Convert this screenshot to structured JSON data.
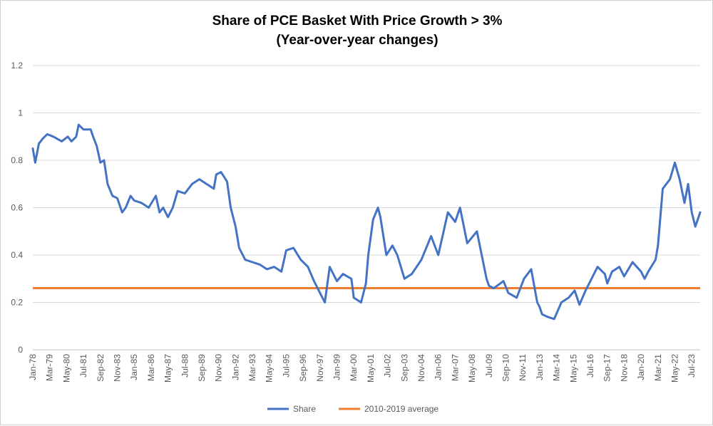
{
  "chart_data": {
    "type": "line",
    "title": "Share of PCE Basket With Price Growth > 3%",
    "subtitle": "(Year-over-year changes)",
    "xlabel": "",
    "ylabel": "",
    "ylim": [
      0,
      1.2
    ],
    "yticks": [
      "0",
      "0.2",
      "0.4",
      "0.6",
      "0.8",
      "1",
      "1.2"
    ],
    "ytick_values": [
      0,
      0.2,
      0.4,
      0.6,
      0.8,
      1.0,
      1.2
    ],
    "grid": true,
    "legend_position": "bottom",
    "x_range": [
      "Jan-78",
      "Feb-24"
    ],
    "xticks": [
      "Jan-78",
      "Mar-79",
      "May-80",
      "Jul-81",
      "Sep-82",
      "Nov-83",
      "Jan-85",
      "Mar-86",
      "May-87",
      "Jul-88",
      "Sep-89",
      "Nov-90",
      "Jan-92",
      "Mar-93",
      "May-94",
      "Jul-95",
      "Sep-96",
      "Nov-97",
      "Jan-99",
      "Mar-00",
      "May-01",
      "Jul-02",
      "Sep-03",
      "Nov-04",
      "Jan-06",
      "Mar-07",
      "May-08",
      "Jul-09",
      "Sep-10",
      "Nov-11",
      "Jan-13",
      "Mar-14",
      "May-15",
      "Jul-16",
      "Sep-17",
      "Nov-18",
      "Jan-20",
      "Mar-21",
      "May-22",
      "Jul-23"
    ],
    "series": [
      {
        "name": "Share",
        "color": "#4472C4",
        "points": [
          [
            "Jan-78",
            0.85
          ],
          [
            "Mar-78",
            0.79
          ],
          [
            "Jun-78",
            0.87
          ],
          [
            "Sep-78",
            0.89
          ],
          [
            "Jan-79",
            0.91
          ],
          [
            "Jun-79",
            0.9
          ],
          [
            "Jan-80",
            0.88
          ],
          [
            "Jun-80",
            0.9
          ],
          [
            "Sep-80",
            0.88
          ],
          [
            "Jan-81",
            0.9
          ],
          [
            "Mar-81",
            0.95
          ],
          [
            "Jul-81",
            0.93
          ],
          [
            "Jan-82",
            0.93
          ],
          [
            "Mar-82",
            0.9
          ],
          [
            "Jun-82",
            0.86
          ],
          [
            "Sep-82",
            0.79
          ],
          [
            "Dec-82",
            0.8
          ],
          [
            "Mar-83",
            0.7
          ],
          [
            "Jul-83",
            0.65
          ],
          [
            "Nov-83",
            0.64
          ],
          [
            "Mar-84",
            0.58
          ],
          [
            "Jun-84",
            0.6
          ],
          [
            "Oct-84",
            0.65
          ],
          [
            "Jan-85",
            0.63
          ],
          [
            "Jul-85",
            0.62
          ],
          [
            "Jan-86",
            0.6
          ],
          [
            "Jul-86",
            0.65
          ],
          [
            "Oct-86",
            0.58
          ],
          [
            "Jan-87",
            0.6
          ],
          [
            "May-87",
            0.56
          ],
          [
            "Sep-87",
            0.6
          ],
          [
            "Jan-88",
            0.67
          ],
          [
            "Jul-88",
            0.66
          ],
          [
            "Jan-89",
            0.7
          ],
          [
            "Jul-89",
            0.72
          ],
          [
            "Jan-90",
            0.7
          ],
          [
            "Jul-90",
            0.68
          ],
          [
            "Sep-90",
            0.74
          ],
          [
            "Jan-91",
            0.75
          ],
          [
            "Jun-91",
            0.71
          ],
          [
            "Sep-91",
            0.6
          ],
          [
            "Jan-92",
            0.52
          ],
          [
            "Apr-92",
            0.43
          ],
          [
            "Sep-92",
            0.38
          ],
          [
            "Mar-93",
            0.37
          ],
          [
            "Sep-93",
            0.36
          ],
          [
            "Mar-94",
            0.34
          ],
          [
            "Sep-94",
            0.35
          ],
          [
            "Mar-95",
            0.33
          ],
          [
            "Jul-95",
            0.42
          ],
          [
            "Jan-96",
            0.43
          ],
          [
            "Jul-96",
            0.38
          ],
          [
            "Jan-97",
            0.35
          ],
          [
            "Jun-97",
            0.29
          ],
          [
            "Nov-97",
            0.24
          ],
          [
            "Mar-98",
            0.2
          ],
          [
            "Jul-98",
            0.35
          ],
          [
            "Jan-99",
            0.29
          ],
          [
            "Jun-99",
            0.32
          ],
          [
            "Jan-00",
            0.3
          ],
          [
            "Mar-00",
            0.22
          ],
          [
            "Sep-00",
            0.2
          ],
          [
            "Jan-01",
            0.28
          ],
          [
            "Mar-01",
            0.4
          ],
          [
            "Jul-01",
            0.55
          ],
          [
            "Nov-01",
            0.6
          ],
          [
            "Jan-02",
            0.56
          ],
          [
            "Jun-02",
            0.4
          ],
          [
            "Nov-02",
            0.44
          ],
          [
            "Mar-03",
            0.4
          ],
          [
            "Sep-03",
            0.3
          ],
          [
            "Mar-04",
            0.32
          ],
          [
            "Nov-04",
            0.38
          ],
          [
            "Jul-05",
            0.48
          ],
          [
            "Jan-06",
            0.4
          ],
          [
            "Sep-06",
            0.58
          ],
          [
            "Mar-07",
            0.54
          ],
          [
            "Jul-07",
            0.6
          ],
          [
            "Jan-08",
            0.45
          ],
          [
            "Sep-08",
            0.5
          ],
          [
            "Jan-09",
            0.4
          ],
          [
            "May-09",
            0.3
          ],
          [
            "Jul-09",
            0.27
          ],
          [
            "Nov-09",
            0.26
          ],
          [
            "Jul-10",
            0.29
          ],
          [
            "Nov-10",
            0.24
          ],
          [
            "Jun-11",
            0.22
          ],
          [
            "Dec-11",
            0.3
          ],
          [
            "Jun-12",
            0.34
          ],
          [
            "Nov-12",
            0.2
          ],
          [
            "Jan-13",
            0.18
          ],
          [
            "Mar-13",
            0.15
          ],
          [
            "Jul-13",
            0.14
          ],
          [
            "Jan-14",
            0.13
          ],
          [
            "Jul-14",
            0.2
          ],
          [
            "Jan-15",
            0.22
          ],
          [
            "Jun-15",
            0.25
          ],
          [
            "Oct-15",
            0.19
          ],
          [
            "Mar-16",
            0.25
          ],
          [
            "Jul-16",
            0.29
          ],
          [
            "Jan-17",
            0.35
          ],
          [
            "Jul-17",
            0.32
          ],
          [
            "Sep-17",
            0.28
          ],
          [
            "Jan-18",
            0.33
          ],
          [
            "Jul-18",
            0.35
          ],
          [
            "Nov-18",
            0.31
          ],
          [
            "Jun-19",
            0.37
          ],
          [
            "Jan-20",
            0.33
          ],
          [
            "Apr-20",
            0.3
          ],
          [
            "Jul-20",
            0.33
          ],
          [
            "Jan-21",
            0.38
          ],
          [
            "Mar-21",
            0.44
          ],
          [
            "Jul-21",
            0.68
          ],
          [
            "Jan-22",
            0.72
          ],
          [
            "May-22",
            0.79
          ],
          [
            "Sep-22",
            0.72
          ],
          [
            "Jan-23",
            0.62
          ],
          [
            "Apr-23",
            0.7
          ],
          [
            "Jul-23",
            0.58
          ],
          [
            "Oct-23",
            0.52
          ],
          [
            "Feb-24",
            0.58
          ]
        ]
      },
      {
        "name": "2010-2019 average",
        "color": "#ED7D31",
        "value": 0.26
      }
    ]
  }
}
